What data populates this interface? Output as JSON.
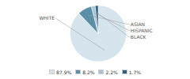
{
  "chart_data": {
    "type": "pie",
    "categories": [
      "WHITE",
      "ASIAN",
      "HISPANIC",
      "BLACK"
    ],
    "values": [
      87.9,
      8.2,
      2.2,
      1.7
    ],
    "value_labels": [
      "87.9%",
      "8.2%",
      "2.2%",
      "1.7%"
    ],
    "colors": [
      "#d6e4ee",
      "#5b8fa8",
      "#a8c4d4",
      "#2e5f7a"
    ],
    "legend": "bottom"
  }
}
